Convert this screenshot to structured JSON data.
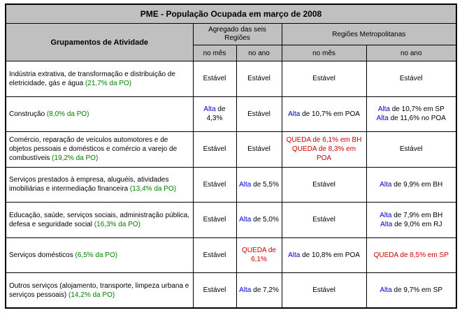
{
  "title": "PME - População Ocupada em março de 2008",
  "header": {
    "group_col": "Grupamentos de Atividade",
    "aggregate": "Agregado das seis Regiões",
    "metro": "Regiões Metropolitanas",
    "no_mes": "no mês",
    "no_ano": "no ano"
  },
  "rows": [
    {
      "activity": "Indústria extrativa, de transformação e distribuição de eletricidade, gás e água",
      "share": "(21,7% da PO)",
      "agg_mes": [
        {
          "t": "Estável"
        }
      ],
      "agg_ano": [
        {
          "t": "Estável"
        }
      ],
      "met_mes": [
        {
          "t": "Estável"
        }
      ],
      "met_ano": [
        {
          "t": "Estável"
        }
      ]
    },
    {
      "activity": "Construção",
      "share": "(8,0% da PO)",
      "agg_mes": [
        {
          "k": "Alta",
          "t": " de 4,3%"
        }
      ],
      "agg_ano": [
        {
          "t": "Estável"
        }
      ],
      "met_mes": [
        {
          "k": "Alta",
          "t": " de 10,7% em POA"
        }
      ],
      "met_ano": [
        {
          "k": "Alta",
          "t": " de 10,7% em SP"
        },
        {
          "k": "Alta",
          "t": " de 11,6% no POA"
        }
      ]
    },
    {
      "activity": "Comércio, reparação de veículos automotores e de objetos pessoais e domésticos e comércio a varejo de combustíveis",
      "share": "(19,2% da PO)",
      "agg_mes": [
        {
          "t": "Estável"
        }
      ],
      "agg_ano": [
        {
          "t": "Estável"
        }
      ],
      "met_mes": [
        {
          "q": "QUEDA de 6,1% em BH"
        },
        {
          "q": "QUEDA de 8,3% em POA"
        }
      ],
      "met_ano": [
        {
          "t": "Estável"
        }
      ]
    },
    {
      "activity": "Serviços prestados à empresa, aluguéis, atividades imobiliárias e intermediação financeira",
      "share": "(13,4% da PO)",
      "agg_mes": [
        {
          "t": "Estável"
        }
      ],
      "agg_ano": [
        {
          "k": "Alta",
          "t": " de 5,5%"
        }
      ],
      "met_mes": [
        {
          "t": "Estável"
        }
      ],
      "met_ano": [
        {
          "k": "Alta",
          "t": " de 9,9% em BH"
        }
      ]
    },
    {
      "activity": "Educação, saúde, serviços sociais, administração pública, defesa e seguridade social",
      "share": "(16,3% da PO)",
      "agg_mes": [
        {
          "t": "Estável"
        }
      ],
      "agg_ano": [
        {
          "k": "Alta",
          "t": " de 5,0%"
        }
      ],
      "met_mes": [
        {
          "t": "Estável"
        }
      ],
      "met_ano": [
        {
          "k": "Alta",
          "t": " de 7,9% em BH"
        },
        {
          "k": "Alta",
          "t": " de 9,0% em RJ"
        }
      ]
    },
    {
      "activity": "Serviços domésticos",
      "share": "(6,5% da PO)",
      "agg_mes": [
        {
          "t": "Estável"
        }
      ],
      "agg_ano": [
        {
          "q": "QUEDA de"
        },
        {
          "q": "6,1%"
        }
      ],
      "met_mes": [
        {
          "k": "Alta",
          "t": " de 10,8% em POA"
        }
      ],
      "met_ano": [
        {
          "q": "QUEDA de 8,5% em SP"
        }
      ]
    },
    {
      "activity": "Outros serviços (alojamento, transporte, limpeza urbana e serviços pessoais)",
      "share": "(14,2% da PO)",
      "agg_mes": [
        {
          "t": "Estável"
        }
      ],
      "agg_ano": [
        {
          "k": "Alta",
          "t": " de 7,2%"
        }
      ],
      "met_mes": [
        {
          "t": "Estável"
        }
      ],
      "met_ano": [
        {
          "k": "Alta",
          "t": " de 9,7% em SP"
        }
      ]
    }
  ]
}
